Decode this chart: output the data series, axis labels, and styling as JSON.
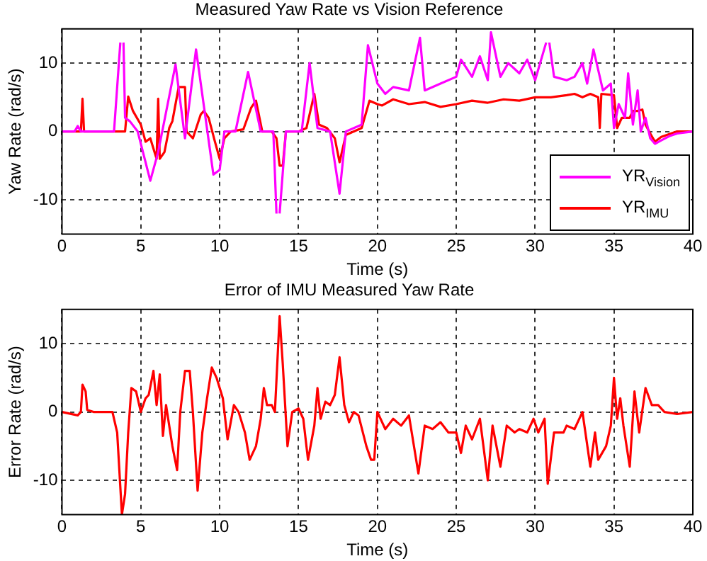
{
  "chart_data": [
    {
      "type": "line",
      "title": "Measured Yaw Rate vs Vision Reference",
      "xlabel": "Time (s)",
      "ylabel": "Yaw Rate (rad/s)",
      "xlim": [
        0,
        40
      ],
      "xticks": [
        0,
        5,
        10,
        15,
        20,
        25,
        30,
        35,
        40
      ],
      "ylim": [
        -15,
        15
      ],
      "yticks": [
        -10,
        0,
        10
      ],
      "grid": true,
      "legend": "bottom right",
      "line_style": "solid",
      "marker": "none",
      "series": [
        {
          "name": "YR$_{Vision}$",
          "color": "#ff00ff",
          "x": [
            0,
            0.8,
            1.0,
            1.2,
            3.3,
            3.7,
            3.8,
            3.9,
            4.0,
            4.3,
            4.8,
            5.6,
            6.1,
            7.2,
            7.8,
            8.5,
            9.6,
            10.0,
            10.3,
            11.0,
            11.8,
            12.6,
            13.4,
            13.6,
            13.7,
            13.8,
            14.2,
            15.2,
            15.7,
            16.2,
            17.0,
            17.6,
            18.0,
            19.0,
            19.4,
            20.0,
            20.5,
            21.0,
            22.0,
            22.7,
            23.0,
            24.0,
            25.0,
            25.3,
            26.0,
            26.5,
            27.0,
            27.2,
            27.8,
            28.3,
            29.0,
            29.5,
            30.0,
            30.7,
            30.8,
            30.9,
            31.2,
            32.0,
            32.5,
            33.0,
            33.3,
            33.7,
            34.3,
            34.8,
            35.0,
            35.3,
            35.7,
            35.9,
            36.2,
            36.5,
            36.7,
            37.0,
            37.3,
            37.6,
            38.0,
            38.5,
            39.0,
            40.0
          ],
          "values": [
            0,
            0,
            0.8,
            0,
            0,
            13,
            null,
            13,
            2,
            1.5,
            0,
            -7.2,
            -3,
            9.8,
            -1,
            12,
            -6.3,
            -5.6,
            0,
            0,
            8.7,
            0,
            0,
            -12,
            null,
            -12,
            0,
            0,
            10,
            0.5,
            0,
            -9.1,
            0,
            1,
            12.6,
            7,
            5.5,
            6.5,
            6,
            13.7,
            6,
            7,
            8,
            10.5,
            8,
            11,
            7.5,
            14.5,
            8,
            10,
            8.5,
            10.5,
            7.5,
            13,
            null,
            13,
            8,
            7.5,
            8,
            10,
            7,
            12,
            6,
            7,
            0.5,
            4,
            2,
            8.5,
            1,
            6,
            0,
            2,
            -1,
            -1.8,
            -1.3,
            -0.7,
            -0.3,
            0
          ]
        },
        {
          "name": "YR$_{IMU}$",
          "color": "#ff0000",
          "x": [
            0,
            1.2,
            1.3,
            1.4,
            4.0,
            4.2,
            4.5,
            5.0,
            5.3,
            5.6,
            6.0,
            6.1,
            6.2,
            6.5,
            6.8,
            7.0,
            7.4,
            7.8,
            7.9,
            8.3,
            8.8,
            9.0,
            9.3,
            9.7,
            10.0,
            10.3,
            10.7,
            11.5,
            12.0,
            12.3,
            12.7,
            13.3,
            13.6,
            13.8,
            14.0,
            14.2,
            15.0,
            15.5,
            16.0,
            16.3,
            16.8,
            17.3,
            17.6,
            18.0,
            19.0,
            19.5,
            20.0,
            20.3,
            21.0,
            22.0,
            23.0,
            24.0,
            25.0,
            26.0,
            27.0,
            28.0,
            29.0,
            30.0,
            31.0,
            32.0,
            32.5,
            33.0,
            33.5,
            34.0,
            34.1,
            34.2,
            35.0,
            35.2,
            35.5,
            36.0,
            36.2,
            36.5,
            36.8,
            37.0,
            37.3,
            37.6,
            38.0,
            39.0,
            40.0
          ],
          "values": [
            0,
            0,
            4.8,
            0,
            0,
            5.1,
            3,
            1,
            -1.5,
            -1,
            -4,
            4.8,
            -4,
            -3,
            0.5,
            1.5,
            6.5,
            6.5,
            0,
            -1,
            2.5,
            3,
            2,
            -1.5,
            -4,
            -1,
            0,
            0.3,
            3.5,
            4.5,
            0,
            0,
            -1,
            -5,
            -5,
            0,
            0,
            0.5,
            5.5,
            1,
            0.5,
            -1,
            -4.5,
            -0.5,
            0.5,
            4.5,
            4,
            3.8,
            4.7,
            4,
            4.3,
            3.6,
            4,
            4.5,
            4.2,
            4.7,
            4.5,
            5,
            5,
            5.3,
            5.5,
            5,
            5.5,
            5,
            0.5,
            5.5,
            5.3,
            0.5,
            2,
            2,
            3,
            3,
            3.2,
            1,
            -0.3,
            -1.5,
            -0.8,
            0,
            0
          ]
        }
      ]
    },
    {
      "type": "line",
      "title": "Error of IMU Measured Yaw Rate",
      "xlabel": "Time (s)",
      "ylabel": "Error Rate (rad/s)",
      "xlim": [
        0,
        40
      ],
      "xticks": [
        0,
        5,
        10,
        15,
        20,
        25,
        30,
        35,
        40
      ],
      "ylim": [
        -15,
        15
      ],
      "yticks": [
        -10,
        0,
        10
      ],
      "grid": true,
      "line_style": "solid",
      "marker": "none",
      "series": [
        {
          "color": "#ff0000",
          "x": [
            0,
            1.0,
            1.2,
            1.3,
            1.5,
            1.6,
            2.0,
            3.2,
            3.5,
            3.8,
            4.0,
            4.2,
            4.4,
            4.7,
            5.0,
            5.3,
            5.5,
            5.8,
            6.0,
            6.2,
            6.4,
            6.6,
            7.0,
            7.3,
            7.5,
            7.8,
            8.1,
            8.3,
            8.6,
            8.9,
            9.2,
            9.5,
            9.8,
            10.2,
            10.5,
            10.9,
            11.2,
            11.6,
            11.9,
            12.3,
            12.6,
            12.8,
            13.0,
            13.3,
            13.5,
            13.8,
            14.0,
            14.3,
            14.6,
            15.0,
            15.3,
            15.6,
            16.0,
            16.2,
            16.4,
            16.7,
            17.0,
            17.3,
            17.6,
            17.9,
            18.2,
            18.5,
            18.8,
            19.3,
            19.6,
            19.8,
            20.0,
            20.5,
            21.0,
            21.5,
            22.0,
            22.6,
            23.0,
            23.5,
            24.0,
            24.5,
            25.0,
            25.3,
            25.6,
            26.0,
            26.5,
            27.0,
            27.3,
            27.8,
            28.2,
            28.7,
            29.0,
            29.5,
            29.9,
            30.2,
            30.6,
            30.8,
            31.2,
            31.8,
            32.0,
            32.5,
            33.0,
            33.5,
            33.8,
            34.0,
            34.5,
            34.8,
            35.0,
            35.2,
            35.4,
            35.6,
            36.0,
            36.3,
            36.6,
            37.0,
            37.4,
            37.8,
            38.2,
            39.0,
            40.0
          ],
          "values": [
            0,
            -0.5,
            0,
            4,
            3,
            0.3,
            0,
            0,
            -3,
            -15,
            -12,
            -3,
            3.5,
            3,
            0,
            2,
            2.5,
            6,
            1,
            5.5,
            -3.5,
            1,
            -5,
            -8.5,
            0,
            6,
            6,
            0,
            -11.5,
            -3,
            2,
            6.5,
            5,
            2,
            -4,
            1,
            0,
            -3,
            -7,
            -5,
            -1,
            3.5,
            1,
            1,
            0,
            14,
            7,
            -5,
            0,
            0.5,
            -1,
            -7,
            -2,
            3.5,
            -1,
            1.5,
            1,
            2.5,
            8,
            1,
            -1.5,
            0,
            -0.5,
            -5,
            -7,
            -7,
            0,
            -2.5,
            -1,
            -2,
            -0.5,
            -9,
            -2,
            -2.5,
            -1.5,
            -3,
            -3,
            -6,
            -2,
            -4,
            -1,
            -10,
            -2,
            -8,
            -2,
            -3,
            -2.5,
            -3,
            -1,
            -3,
            -1,
            -10.5,
            -3,
            -3,
            -2,
            -2.5,
            0,
            -8,
            -3,
            -7,
            -5,
            -2,
            5,
            -1,
            2,
            -2,
            -8,
            3,
            -3,
            3.5,
            1,
            1,
            0,
            -0.3,
            0
          ]
        }
      ]
    }
  ]
}
